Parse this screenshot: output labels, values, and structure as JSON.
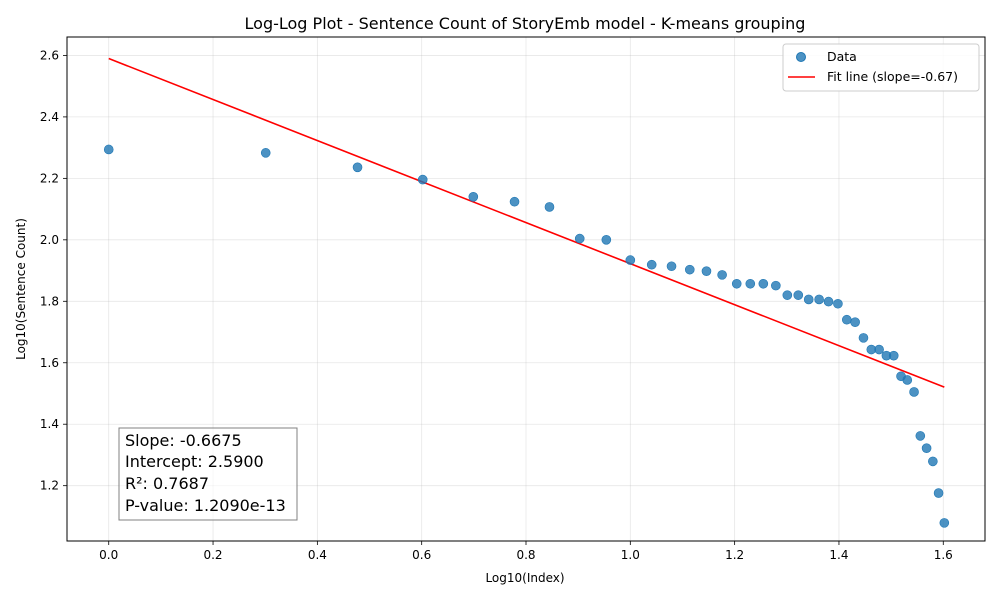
{
  "chart_data": {
    "type": "scatter",
    "title": "Log-Log Plot - Sentence Count of StoryEmb model - K-means grouping",
    "xlabel": "Log10(Index)",
    "ylabel": "Log10(Sentence Count)",
    "xlim": [
      -0.08,
      1.68
    ],
    "ylim": [
      1.02,
      2.66
    ],
    "xticks": [
      "0.0",
      "0.2",
      "0.4",
      "0.6",
      "0.8",
      "1.0",
      "1.2",
      "1.4",
      "1.6"
    ],
    "yticks": [
      "1.2",
      "1.4",
      "1.6",
      "1.8",
      "2.0",
      "2.2",
      "2.4",
      "2.6"
    ],
    "grid": true,
    "legend_position": "top-right",
    "series": [
      {
        "name": "Data",
        "kind": "scatter",
        "color": "#1f77b4",
        "points": [
          [
            0.0,
            2.294
          ],
          [
            0.301,
            2.283
          ],
          [
            0.477,
            2.236
          ],
          [
            0.602,
            2.196
          ],
          [
            0.699,
            2.14
          ],
          [
            0.778,
            2.124
          ],
          [
            0.845,
            2.107
          ],
          [
            0.903,
            2.004
          ],
          [
            0.954,
            2.0
          ],
          [
            1.0,
            1.934
          ],
          [
            1.041,
            1.919
          ],
          [
            1.079,
            1.914
          ],
          [
            1.114,
            1.903
          ],
          [
            1.146,
            1.898
          ],
          [
            1.176,
            1.886
          ],
          [
            1.204,
            1.857
          ],
          [
            1.23,
            1.857
          ],
          [
            1.255,
            1.857
          ],
          [
            1.279,
            1.851
          ],
          [
            1.301,
            1.82
          ],
          [
            1.322,
            1.82
          ],
          [
            1.342,
            1.806
          ],
          [
            1.362,
            1.806
          ],
          [
            1.38,
            1.799
          ],
          [
            1.398,
            1.792
          ],
          [
            1.415,
            1.74
          ],
          [
            1.431,
            1.732
          ],
          [
            1.447,
            1.681
          ],
          [
            1.462,
            1.643
          ],
          [
            1.477,
            1.643
          ],
          [
            1.491,
            1.623
          ],
          [
            1.505,
            1.623
          ],
          [
            1.519,
            1.556
          ],
          [
            1.531,
            1.544
          ],
          [
            1.544,
            1.505
          ],
          [
            1.556,
            1.362
          ],
          [
            1.568,
            1.322
          ],
          [
            1.58,
            1.279
          ],
          [
            1.591,
            1.176
          ],
          [
            1.602,
            1.079
          ]
        ]
      },
      {
        "name": "Fit line (slope=-0.67)",
        "kind": "line",
        "color": "#ff0000",
        "slope": -0.6675,
        "intercept": 2.59,
        "x_range": [
          0.0,
          1.602
        ]
      }
    ],
    "annotation": {
      "lines": [
        "Slope: -0.6675",
        "Intercept: 2.5900",
        "R²: 0.7687",
        "P-value: 1.2090e-13"
      ]
    }
  }
}
